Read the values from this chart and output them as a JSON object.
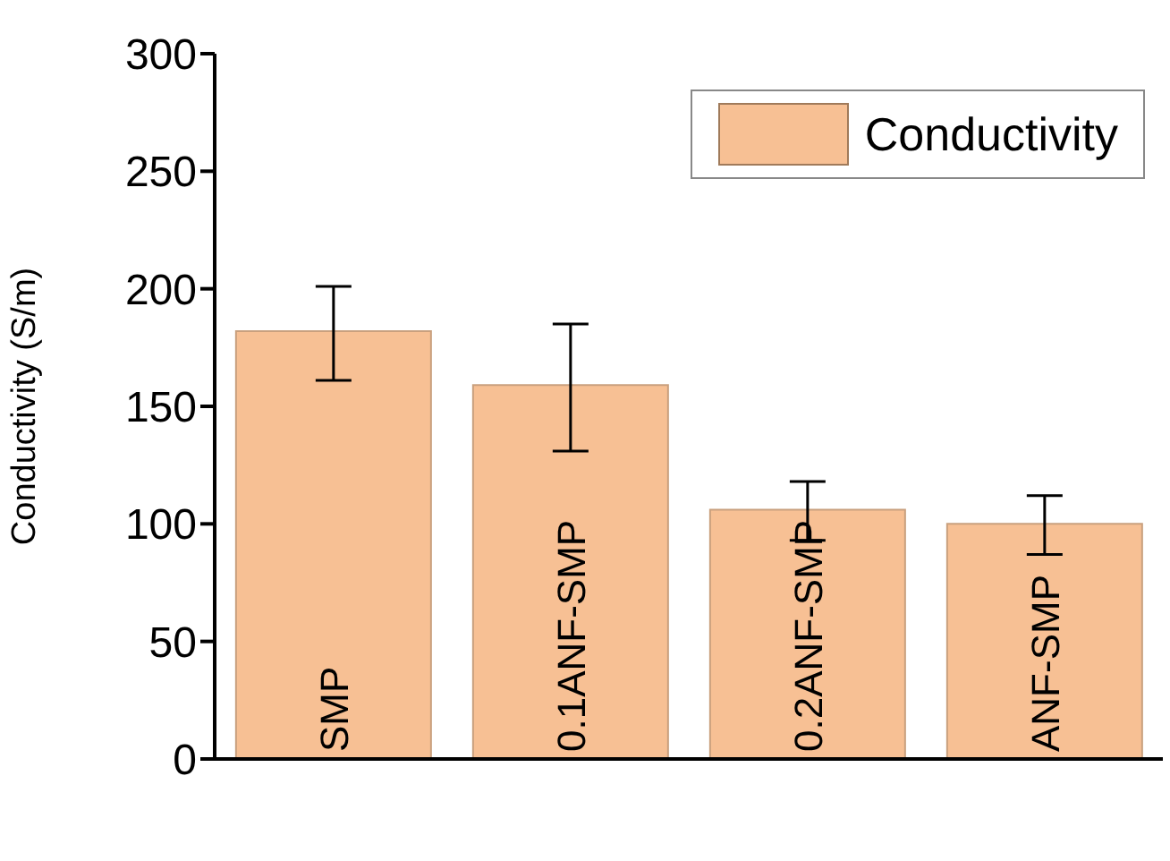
{
  "chart_data": {
    "type": "bar",
    "ylabel": "Conductivity (S/m)",
    "categories": [
      "SMP",
      "0.1ANF-SMP",
      "0.2ANF-SMP",
      "ANF-SMP"
    ],
    "series": [
      {
        "name": "Conductivity",
        "color": "#f7c094",
        "values": [
          182,
          159,
          106,
          100
        ],
        "errors": [
          [
            161,
            201
          ],
          [
            131,
            185
          ],
          [
            93,
            118
          ],
          [
            87,
            112
          ]
        ]
      }
    ],
    "ylim": [
      0,
      300
    ],
    "yticks": [
      0,
      50,
      100,
      150,
      200,
      250,
      300
    ],
    "legend": "top right",
    "grid": false
  }
}
